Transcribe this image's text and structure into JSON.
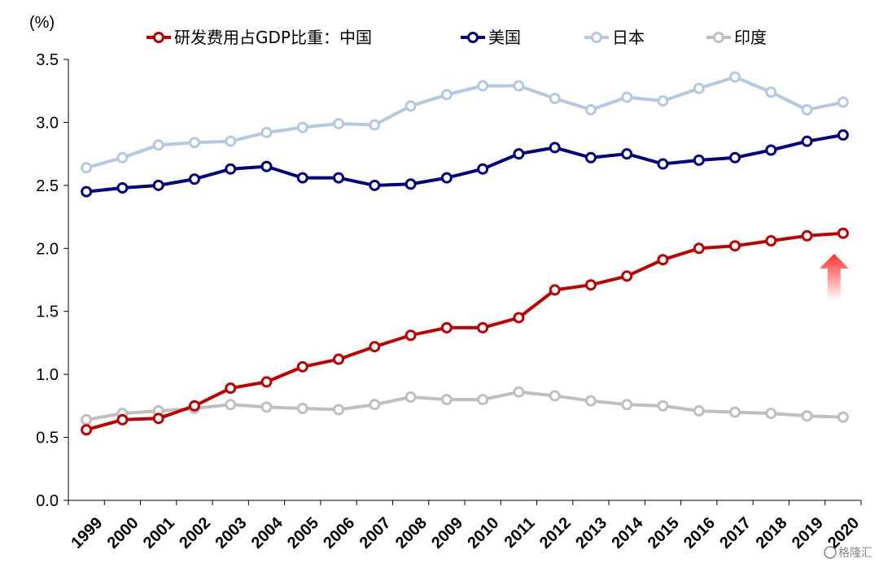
{
  "chart_data": {
    "type": "line",
    "ylabel": "(%)",
    "ylim": [
      0,
      3.5
    ],
    "yticks": [
      "0.0",
      "0.5",
      "1.0",
      "1.5",
      "2.0",
      "2.5",
      "3.0",
      "3.5"
    ],
    "categories": [
      "1999",
      "2000",
      "2001",
      "2002",
      "2003",
      "2004",
      "2005",
      "2006",
      "2007",
      "2008",
      "2009",
      "2010",
      "2011",
      "2012",
      "2013",
      "2014",
      "2015",
      "2016",
      "2017",
      "2018",
      "2019",
      "2020"
    ],
    "legend_position": "top",
    "series": [
      {
        "name": "研发费用占GDP比重：中国",
        "color": "#C00000",
        "values": [
          0.56,
          0.64,
          0.65,
          0.75,
          0.89,
          0.94,
          1.06,
          1.12,
          1.22,
          1.31,
          1.37,
          1.37,
          1.45,
          1.67,
          1.71,
          1.78,
          1.91,
          2.0,
          2.02,
          2.06,
          2.1,
          2.12
        ]
      },
      {
        "name": "美国",
        "color": "#000080",
        "values": [
          2.45,
          2.48,
          2.5,
          2.55,
          2.63,
          2.65,
          2.56,
          2.56,
          2.5,
          2.51,
          2.56,
          2.63,
          2.75,
          2.8,
          2.72,
          2.75,
          2.67,
          2.7,
          2.72,
          2.78,
          2.85,
          2.9
        ]
      },
      {
        "name": "日本",
        "color": "#B4C8E4",
        "values": [
          2.64,
          2.72,
          2.82,
          2.84,
          2.85,
          2.92,
          2.96,
          2.99,
          2.98,
          3.13,
          3.22,
          3.29,
          3.29,
          3.19,
          3.1,
          3.2,
          3.17,
          3.27,
          3.36,
          3.24,
          3.1,
          3.16
        ]
      },
      {
        "name": "印度",
        "color": "#BFBFBF",
        "values": [
          0.64,
          0.69,
          0.71,
          0.73,
          0.76,
          0.74,
          0.73,
          0.72,
          0.76,
          0.82,
          0.8,
          0.8,
          0.86,
          0.83,
          0.79,
          0.76,
          0.75,
          0.71,
          0.7,
          0.69,
          0.67,
          0.66
        ]
      }
    ],
    "annotation": {
      "type": "up-arrow",
      "category": "2020",
      "color": "#FF4040"
    }
  },
  "watermark": "格隆汇"
}
